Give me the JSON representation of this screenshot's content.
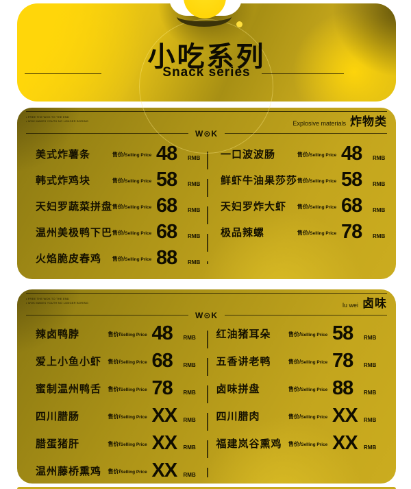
{
  "header": {
    "title": "小吃系列",
    "subtitle": "Snack series"
  },
  "brand": {
    "logo": "W⊙K"
  },
  "notes": [
    "• FREE THE WOK TO THE END",
    "• WOK MAKES YOUTH NO LONGER BORING"
  ],
  "price_label": {
    "cn": "售价/",
    "en": "Selling Price"
  },
  "currency": "RMB",
  "colors": {
    "bright_yellow": "#ffd60a",
    "panel_gold": "#c3a51d",
    "olive_dark": "#8a7812",
    "ink": "#100d00",
    "background": "#ffffff"
  },
  "sections": [
    {
      "name_en": "Explosive materials",
      "name_cn": "炸物类",
      "columns": [
        {
          "items": [
            {
              "name": "美式炸薯条",
              "price": "48"
            },
            {
              "name": "韩式炸鸡块",
              "price": "58"
            },
            {
              "name": "天妇罗蔬菜拼盘",
              "price": "68"
            },
            {
              "name": "温州美极鸭下巴",
              "price": "68"
            },
            {
              "name": "火焰脆皮春鸡",
              "price": "88"
            }
          ]
        },
        {
          "items": [
            {
              "name": "一口波波肠",
              "price": "48"
            },
            {
              "name": "鲜虾牛油果莎莎",
              "price": "58"
            },
            {
              "name": "天妇罗炸大虾",
              "price": "68"
            },
            {
              "name": "极品辣螺",
              "price": "78"
            }
          ]
        }
      ]
    },
    {
      "name_en": "lu wei",
      "name_cn": "卤味",
      "columns": [
        {
          "items": [
            {
              "name": "辣卤鸭脖",
              "price": "48"
            },
            {
              "name": "爱上小鱼小虾",
              "price": "68"
            },
            {
              "name": "蜜制温州鸭舌",
              "price": "78"
            },
            {
              "name": "四川腊肠",
              "price": "XX"
            },
            {
              "name": "腊蛋猪肝",
              "price": "XX"
            },
            {
              "name": "温州藤桥熏鸡",
              "price": "XX"
            }
          ]
        },
        {
          "items": [
            {
              "name": "红油猪耳朵",
              "price": "58"
            },
            {
              "name": "五香讲老鸭",
              "price": "78"
            },
            {
              "name": "卤味拼盘",
              "price": "88"
            },
            {
              "name": "四川腊肉",
              "price": "XX"
            },
            {
              "name": "福建岚谷熏鸡",
              "price": "XX"
            }
          ]
        }
      ]
    }
  ]
}
